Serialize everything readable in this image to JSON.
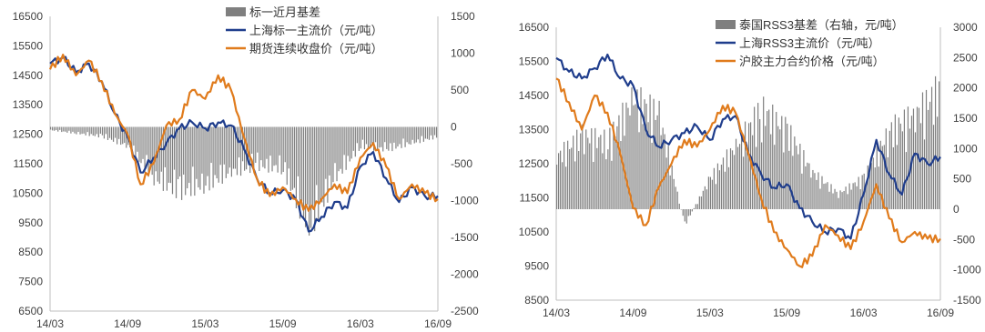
{
  "chart_data": [
    {
      "type": "line",
      "position": "left",
      "title": "",
      "xlabel": "",
      "ylabel": "",
      "x_ticks": [
        "14/03",
        "14/09",
        "15/03",
        "15/09",
        "16/03",
        "16/09"
      ],
      "x_range": [
        "2014-03",
        "2016-09"
      ],
      "y_left": {
        "min": 6500,
        "max": 16500,
        "step": 1000,
        "ticks": [
          "6500",
          "7500",
          "8500",
          "9500",
          "10500",
          "11500",
          "12500",
          "13500",
          "14500",
          "15500",
          "16500"
        ]
      },
      "y_right": {
        "min": -2500,
        "max": 1500,
        "step": 500,
        "ticks": [
          "-2500",
          "-2000",
          "-1500",
          "-1000",
          "-500",
          "0",
          "500",
          "1000",
          "1500"
        ]
      },
      "grid": false,
      "legend_position": "top-center",
      "series": [
        {
          "name": "标一近月基差",
          "kind": "bar",
          "axis": "right",
          "color": "#7f7f7f",
          "x": [
            "2014-03",
            "2014-05",
            "2014-07",
            "2014-09",
            "2014-11",
            "2015-01",
            "2015-03",
            "2015-05",
            "2015-07",
            "2015-09",
            "2015-11",
            "2016-01",
            "2016-03",
            "2016-05",
            "2016-07",
            "2016-09"
          ],
          "values": [
            -50,
            -100,
            -150,
            -300,
            -800,
            -1000,
            -900,
            -700,
            -600,
            -650,
            -1600,
            -800,
            -300,
            -350,
            -250,
            -150
          ]
        },
        {
          "name": "上海标一主流价（元/吨）",
          "kind": "line",
          "axis": "left",
          "color": "#1f3d8c",
          "x": [
            "2014-03",
            "2014-04",
            "2014-05",
            "2014-06",
            "2014-07",
            "2014-08",
            "2014-09",
            "2014-10",
            "2014-11",
            "2014-12",
            "2015-01",
            "2015-02",
            "2015-03",
            "2015-04",
            "2015-05",
            "2015-06",
            "2015-07",
            "2015-08",
            "2015-09",
            "2015-10",
            "2015-11",
            "2015-12",
            "2016-01",
            "2016-02",
            "2016-03",
            "2016-04",
            "2016-05",
            "2016-06",
            "2016-07",
            "2016-08",
            "2016-09"
          ],
          "values": [
            14900,
            15100,
            14600,
            14900,
            14300,
            13200,
            12400,
            11200,
            11700,
            12200,
            12700,
            12900,
            12700,
            12900,
            12800,
            12000,
            11000,
            10500,
            10600,
            10300,
            9200,
            9700,
            10200,
            10000,
            11400,
            11900,
            11000,
            10200,
            10700,
            10400,
            10400
          ]
        },
        {
          "name": "期货连续收盘价（元/吨）",
          "kind": "line",
          "axis": "left",
          "color": "#e07b1c",
          "x": [
            "2014-03",
            "2014-04",
            "2014-05",
            "2014-06",
            "2014-07",
            "2014-08",
            "2014-09",
            "2014-10",
            "2014-11",
            "2014-12",
            "2015-01",
            "2015-02",
            "2015-03",
            "2015-04",
            "2015-05",
            "2015-06",
            "2015-07",
            "2015-08",
            "2015-09",
            "2015-10",
            "2015-11",
            "2015-12",
            "2016-01",
            "2016-02",
            "2016-03",
            "2016-04",
            "2016-05",
            "2016-06",
            "2016-07",
            "2016-08",
            "2016-09"
          ],
          "values": [
            14700,
            15200,
            14500,
            15000,
            14300,
            13200,
            12500,
            10800,
            11500,
            12800,
            13000,
            14000,
            13700,
            14500,
            14000,
            12400,
            11000,
            10400,
            10700,
            10300,
            9900,
            10300,
            10800,
            10500,
            11700,
            12200,
            11400,
            10300,
            10800,
            10500,
            10300
          ]
        }
      ]
    },
    {
      "type": "line",
      "position": "right",
      "title": "",
      "xlabel": "",
      "ylabel": "",
      "x_ticks": [
        "14/03",
        "14/09",
        "15/03",
        "15/09",
        "16/03",
        "16/09"
      ],
      "x_range": [
        "2014-03",
        "2016-09"
      ],
      "y_left": {
        "min": 8500,
        "max": 16500,
        "step": 1000,
        "ticks": [
          "8500",
          "9500",
          "10500",
          "11500",
          "12500",
          "13500",
          "14500",
          "15500",
          "16500"
        ]
      },
      "y_right": {
        "min": -1500,
        "max": 3000,
        "step": 500,
        "ticks": [
          "-1500",
          "-1000",
          "-500",
          "0",
          "500",
          "1000",
          "1500",
          "2000",
          "2500",
          "3000"
        ]
      },
      "grid": false,
      "legend_position": "top-center",
      "series": [
        {
          "name": "泰国RSS3基差（右轴，元/吨）",
          "kind": "bar",
          "axis": "right",
          "color": "#7f7f7f",
          "x": [
            "2014-03",
            "2014-05",
            "2014-07",
            "2014-09",
            "2014-11",
            "2015-01",
            "2015-03",
            "2015-05",
            "2015-07",
            "2015-09",
            "2015-11",
            "2016-01",
            "2016-03",
            "2016-05",
            "2016-07",
            "2016-09"
          ],
          "values": [
            1000,
            1400,
            1300,
            2100,
            1800,
            -300,
            600,
            1200,
            1900,
            1500,
            700,
            300,
            600,
            1500,
            1800,
            2300
          ]
        },
        {
          "name": "上海RSS3主流价（元/吨）",
          "kind": "line",
          "axis": "left",
          "color": "#1f3d8c",
          "x": [
            "2014-03",
            "2014-04",
            "2014-05",
            "2014-06",
            "2014-07",
            "2014-08",
            "2014-09",
            "2014-10",
            "2014-11",
            "2014-12",
            "2015-01",
            "2015-02",
            "2015-03",
            "2015-04",
            "2015-05",
            "2015-06",
            "2015-07",
            "2015-08",
            "2015-09",
            "2015-10",
            "2015-11",
            "2015-12",
            "2016-01",
            "2016-02",
            "2016-03",
            "2016-04",
            "2016-05",
            "2016-06",
            "2016-07",
            "2016-08",
            "2016-09"
          ],
          "values": [
            15600,
            15200,
            15000,
            15300,
            15700,
            15000,
            14800,
            13500,
            13000,
            13200,
            13400,
            13600,
            13200,
            13800,
            13900,
            12800,
            12200,
            11800,
            11900,
            11200,
            10800,
            10500,
            10600,
            10300,
            11600,
            13200,
            12200,
            11600,
            12800,
            12500,
            12700
          ]
        },
        {
          "name": "沪胶主力合约价格（元/吨）",
          "kind": "line",
          "axis": "left",
          "color": "#e07b1c",
          "x": [
            "2014-03",
            "2014-04",
            "2014-05",
            "2014-06",
            "2014-07",
            "2014-08",
            "2014-09",
            "2014-10",
            "2014-11",
            "2014-12",
            "2015-01",
            "2015-02",
            "2015-03",
            "2015-04",
            "2015-05",
            "2015-06",
            "2015-07",
            "2015-08",
            "2015-09",
            "2015-10",
            "2015-11",
            "2015-12",
            "2016-01",
            "2016-02",
            "2016-03",
            "2016-04",
            "2016-05",
            "2016-06",
            "2016-07",
            "2016-08",
            "2016-09"
          ],
          "values": [
            15000,
            14300,
            13500,
            14500,
            14000,
            12800,
            11200,
            10700,
            11800,
            12500,
            13200,
            13000,
            13500,
            14200,
            14000,
            12800,
            11500,
            10500,
            10000,
            9500,
            9800,
            10700,
            10400,
            10000,
            10800,
            11900,
            10900,
            10200,
            10500,
            10300,
            10300
          ]
        }
      ]
    }
  ]
}
